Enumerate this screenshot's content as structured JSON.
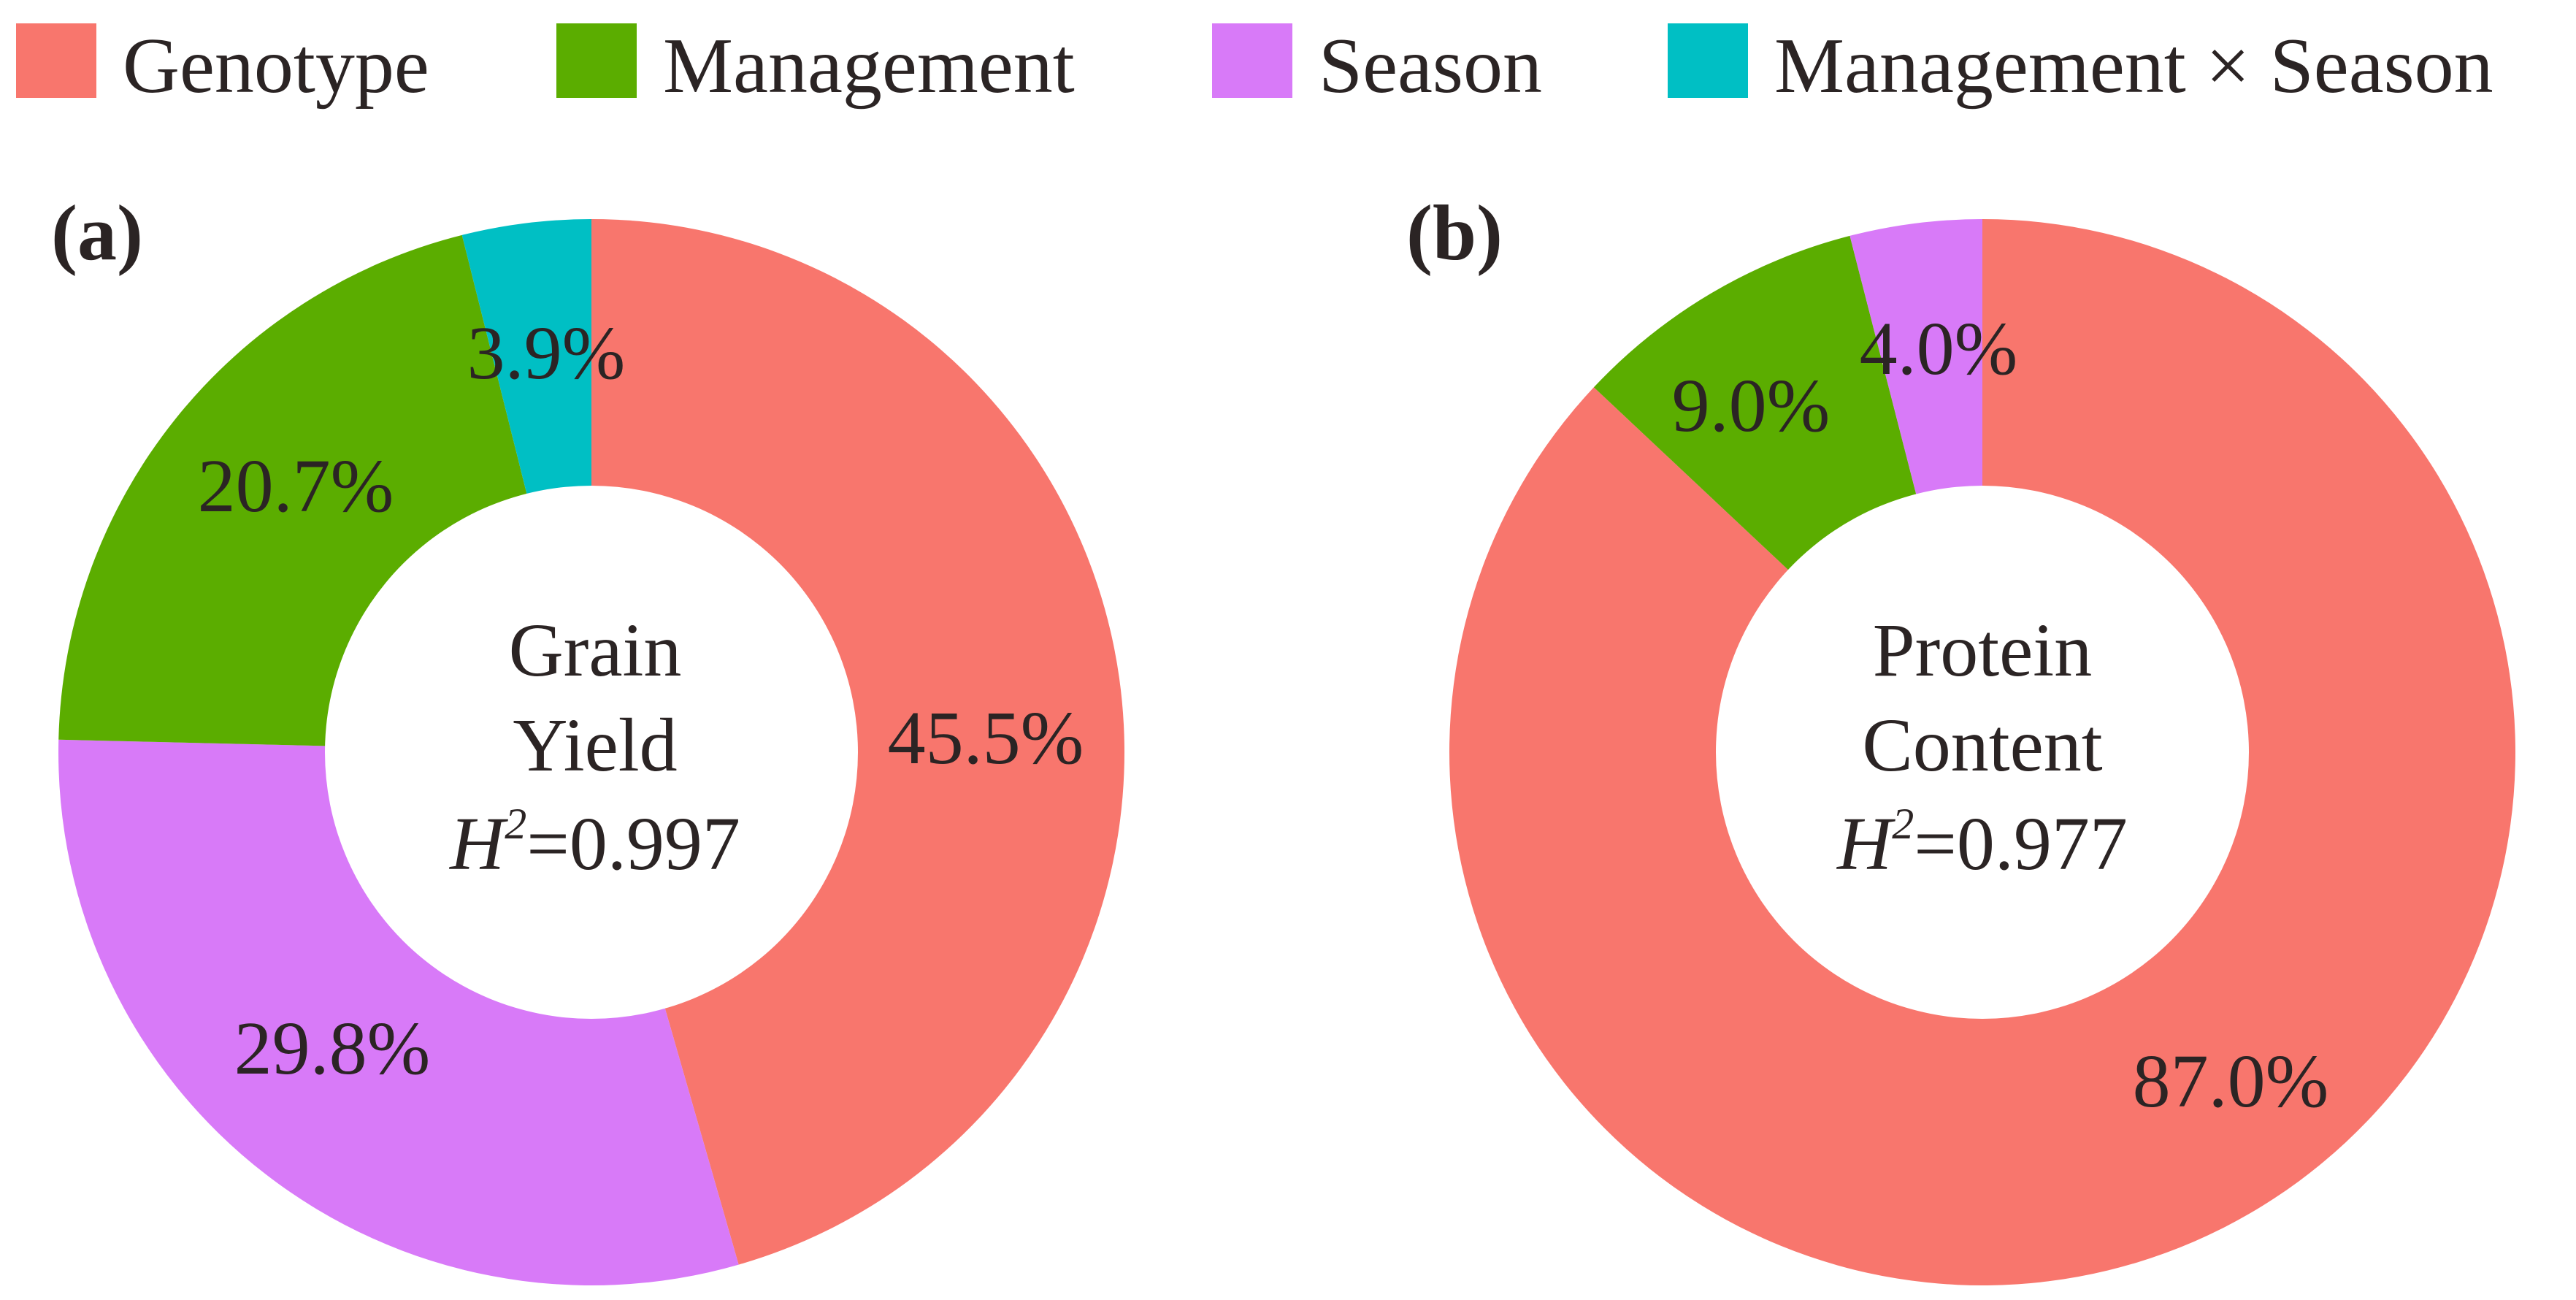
{
  "legend": [
    {
      "label": "Genotype",
      "color": "#F8766D"
    },
    {
      "label": "Management",
      "color": "#5BAD00"
    },
    {
      "label": "Season",
      "color": "#D87AF8"
    },
    {
      "label": "Management × Season",
      "color": "#00BFC4"
    }
  ],
  "chart_data": [
    {
      "type": "pie",
      "style": "donut",
      "panel_label": "(a)",
      "center_text": {
        "line1": "Grain",
        "line2": "Yield",
        "h2_symbol": "H",
        "h2_exponent": "2",
        "h2_value": "=0.997"
      },
      "slices": [
        {
          "category": "Genotype",
          "value": 45.5,
          "label": "45.5%",
          "color": "#F8766D"
        },
        {
          "category": "Season",
          "value": 29.8,
          "label": "29.8%",
          "color": "#D87AF8"
        },
        {
          "category": "Management",
          "value": 20.7,
          "label": "20.7%",
          "color": "#5BAD00"
        },
        {
          "category": "Management × Season",
          "value": 3.9,
          "label": "3.9%",
          "color": "#00BFC4"
        }
      ]
    },
    {
      "type": "pie",
      "style": "donut",
      "panel_label": "(b)",
      "center_text": {
        "line1": "Protein",
        "line2": "Content",
        "h2_symbol": "H",
        "h2_exponent": "2",
        "h2_value": "=0.977"
      },
      "slices": [
        {
          "category": "Genotype",
          "value": 87.0,
          "label": "87.0%",
          "color": "#F8766D"
        },
        {
          "category": "Management",
          "value": 9.0,
          "label": "9.0%",
          "color": "#5BAD00"
        },
        {
          "category": "Season",
          "value": 4.0,
          "label": "4.0%",
          "color": "#D87AF8"
        }
      ]
    }
  ]
}
